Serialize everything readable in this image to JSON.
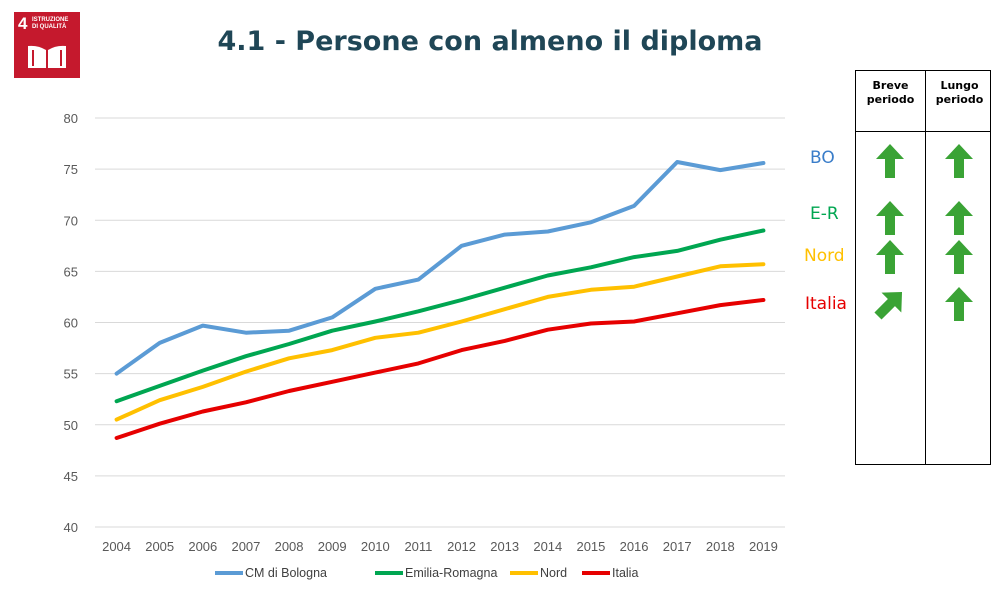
{
  "page": {
    "title": "4.1 - Persone con almeno il diploma",
    "sdg_badge": {
      "number": "4",
      "label": "ISTRUZIONE\nDI QUALITÀ",
      "color": "#c5192d"
    }
  },
  "chart_data": {
    "type": "line",
    "title": "4.1 - Persone con almeno il diploma",
    "x": [
      "2004",
      "2005",
      "2006",
      "2007",
      "2008",
      "2009",
      "2010",
      "2011",
      "2012",
      "2013",
      "2014",
      "2015",
      "2016",
      "2017",
      "2018",
      "2019"
    ],
    "ylim": [
      40,
      80
    ],
    "yticks": [
      40,
      45,
      50,
      55,
      60,
      65,
      70,
      75,
      80
    ],
    "grid": true,
    "legend_position": "bottom",
    "series": [
      {
        "name": "CM di Bologna",
        "color": "#5b9bd5",
        "values": [
          55.0,
          58.0,
          59.7,
          59.0,
          59.2,
          60.5,
          63.3,
          64.2,
          67.5,
          68.6,
          68.9,
          69.8,
          71.4,
          75.7,
          74.9,
          75.6
        ]
      },
      {
        "name": "Emilia-Romagna",
        "color": "#00a651",
        "values": [
          52.3,
          53.8,
          55.3,
          56.7,
          57.9,
          59.2,
          60.1,
          61.1,
          62.2,
          63.4,
          64.6,
          65.4,
          66.4,
          67.0,
          68.1,
          69.0
        ]
      },
      {
        "name": "Nord",
        "color": "#ffc000",
        "values": [
          50.5,
          52.4,
          53.7,
          55.2,
          56.5,
          57.3,
          58.5,
          59.0,
          60.1,
          61.3,
          62.5,
          63.2,
          63.5,
          64.5,
          65.5,
          65.7
        ]
      },
      {
        "name": "Italia",
        "color": "#e60000",
        "values": [
          48.7,
          50.1,
          51.3,
          52.2,
          53.3,
          54.2,
          55.1,
          56.0,
          57.3,
          58.2,
          59.3,
          59.9,
          60.1,
          60.9,
          61.7,
          62.2
        ]
      }
    ]
  },
  "regions": [
    {
      "label": "BO",
      "color": "#3a7dc9"
    },
    {
      "label": "E-R",
      "color": "#00a651"
    },
    {
      "label": "Nord",
      "color": "#ffc000"
    },
    {
      "label": "Italia",
      "color": "#e60000"
    }
  ],
  "trend_table": {
    "headers": [
      "Breve\nperiodo",
      "Lungo\nperiodo"
    ],
    "arrow_color": "#3aa335",
    "rows": [
      {
        "region": "BO",
        "breve": "up",
        "lungo": "up"
      },
      {
        "region": "E-R",
        "breve": "up",
        "lungo": "up"
      },
      {
        "region": "Nord",
        "breve": "up",
        "lungo": "up"
      },
      {
        "region": "Italia",
        "breve": "up-right",
        "lungo": "up"
      }
    ]
  }
}
